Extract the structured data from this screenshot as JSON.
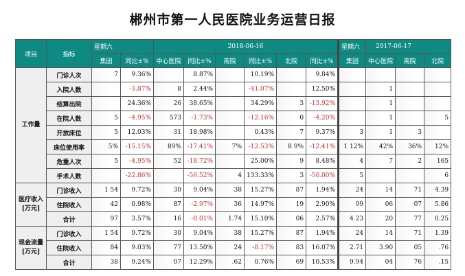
{
  "title": "郴州市第一人民医院业务运营日报",
  "header": {
    "col_project": "项目",
    "col_indicator": "指标",
    "day1_weekday": "星期六",
    "day1_date": "2018-06-16",
    "day2_weekday": "星期六",
    "day2_date": "2017-06-17",
    "sub_day1": [
      "集团",
      "同比±%",
      "中心医院",
      "同比±%",
      "南院",
      "同比±%",
      "北院",
      "同比±%"
    ],
    "sub_day2": [
      "集团",
      "中心医院",
      "南院",
      "北院"
    ]
  },
  "sections": [
    {
      "name": "工作量",
      "rows": [
        {
          "label": "门诊人次",
          "group_val": "7",
          "group_yoy": "9.36%",
          "center_val": "",
          "center_yoy": "8.87%",
          "south_val": "",
          "south_yoy": "10.19%",
          "north_val": "",
          "north_yoy": "9.84%",
          "prev": [
            "",
            "",
            "",
            ""
          ]
        },
        {
          "label": "入院人数",
          "group_val": "",
          "group_yoy": "-3.87%",
          "center_val": "8",
          "center_yoy": "2.44%",
          "south_val": "",
          "south_yoy": "-41.07%",
          "north_val": "",
          "north_yoy": "12.50%",
          "prev": [
            "",
            "1",
            "",
            ""
          ]
        },
        {
          "label": "结算出院",
          "group_val": "",
          "group_yoy": "24.36%",
          "center_val": "26",
          "center_yoy": "38.65%",
          "south_val": "",
          "south_yoy": "34.29%",
          "north_val": "3",
          "north_yoy": "-13.92%",
          "prev": [
            "",
            "1",
            "",
            ""
          ]
        },
        {
          "label": "在院人数",
          "group_val": "5",
          "group_yoy": "-4.95%",
          "center_val": "573",
          "center_yoy": "-1.73%",
          "south_val": "",
          "south_yoy": "-12.16%",
          "north_val": "0",
          "north_yoy": "-4.20%",
          "prev": [
            "",
            "1",
            "",
            "5"
          ]
        },
        {
          "label": "开放床位",
          "group_val": "5",
          "group_yoy": "12.03%",
          "center_val": "31",
          "center_yoy": "18.98%",
          "south_val": "",
          "south_yoy": "0.43%",
          "north_val": "7",
          "north_yoy": "9.37%",
          "prev": [
            "3",
            "1",
            "3",
            ""
          ]
        },
        {
          "label": "床位使用率",
          "group_val": "5%",
          "group_yoy": "-15.15%",
          "center_val": "89%",
          "center_yoy": "-17.41%",
          "south_val": "7%",
          "south_yoy": "-12.53%",
          "north_val": "8 9%",
          "north_yoy": "-12.41%",
          "prev": [
            "1 12%",
            "42%",
            "36%",
            "12%"
          ]
        },
        {
          "label": "危重人次",
          "group_val": "5",
          "group_yoy": "-4.95%",
          "center_val": "52",
          "center_yoy": "-18.72%",
          "south_val": "",
          "south_yoy": "25.00%",
          "north_val": "9",
          "north_yoy": "8.48%",
          "prev": [
            "4",
            "7",
            "2",
            "165"
          ]
        },
        {
          "label": "手术人数",
          "group_val": "",
          "group_yoy": "-22.86%",
          "center_val": "",
          "center_yoy": "-56.52%",
          "south_val": "4",
          "south_yoy": "133.33%",
          "north_val": "3",
          "north_yoy": "-50.00%",
          "prev": [
            "5",
            "",
            "",
            "6"
          ]
        }
      ]
    },
    {
      "name": "医疗收入\n[万元]",
      "rows": [
        {
          "label": "门诊收入",
          "group_val": "1 54",
          "group_yoy": "9.72%",
          "center_val": "30",
          "center_yoy": "9.04%",
          "south_val": "38",
          "south_yoy": "15.27%",
          "north_val": "87",
          "north_yoy": "1.94%",
          "prev": [
            "24",
            "14",
            "71",
            "4.39"
          ]
        },
        {
          "label": "住院收入",
          "group_val": "42",
          "group_yoy": "0.98%",
          "center_val": "87",
          "center_yoy": "-2.97%",
          "south_val": "36",
          "south_yoy": "14.97%",
          "north_val": "19",
          "north_yoy": "2.90%",
          "prev": [
            "99",
            "06",
            "07",
            "5.86"
          ]
        },
        {
          "label": "合计",
          "group_val": "97",
          "group_yoy": "3.57%",
          "center_val": "16",
          "center_yoy": "-0.01%",
          "south_val": "1.74",
          "south_yoy": "15.10%",
          "north_val": "06",
          "north_yoy": "2.57%",
          "prev": [
            "4 23",
            "20",
            "77",
            "0.25"
          ]
        }
      ]
    },
    {
      "name": "现金流量\n[万元]",
      "rows": [
        {
          "label": "门诊收入",
          "group_val": "1 54",
          "group_yoy": "9.72%",
          "center_val": "30",
          "center_yoy": "9.04%",
          "south_val": "38",
          "south_yoy": "15.27%",
          "north_val": "87",
          "north_yoy": "1.94%",
          "prev": [
            "24",
            "14",
            "71",
            "1.39"
          ]
        },
        {
          "label": "住院收入",
          "group_val": "84",
          "group_yoy": "9.03%",
          "center_val": "77",
          "center_yoy": "13.50%",
          "south_val": "24",
          "south_yoy": "-8.17%",
          "north_val": "83",
          "north_yoy": "16.07%",
          "prev": [
            "2.71",
            "3.90",
            "05",
            ".76"
          ]
        },
        {
          "label": "合计",
          "group_val": "38",
          "group_yoy": "9.24%",
          "center_val": "07",
          "center_yoy": "12.29%",
          "south_val": ".62",
          "south_yoy": "0.76%",
          "north_val": "69",
          "north_yoy": "10.53%",
          "prev": [
            "9.94",
            "04",
            "76",
            ".15"
          ]
        }
      ]
    }
  ]
}
